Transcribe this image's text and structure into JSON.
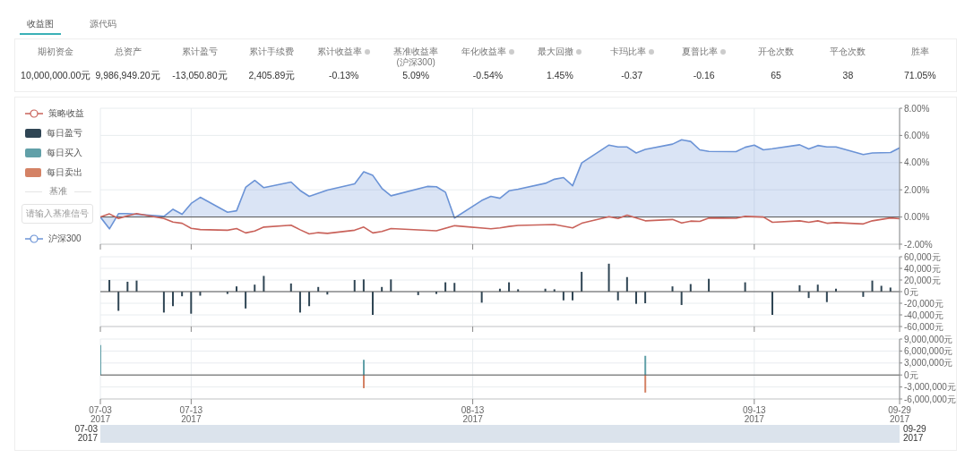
{
  "chart_data": [
    {
      "type": "other",
      "annotations": [
        "收益图",
        "源代码"
      ],
      "categories": [
        "期初资金",
        "总资产",
        "累计盈亏",
        "累计手续费",
        "累计收益率",
        "基准收益率\n(沪深300)",
        "年化收益率",
        "最大回撤",
        "卡玛比率",
        "夏普比率",
        "开仓次数",
        "平仓次数",
        "胜率"
      ],
      "value_labels": [
        "10,000,000.00元",
        "9,986,949.20元",
        "-13,050.80元",
        "2,405.89元",
        "-0.13%",
        "5.09%",
        "-0.54%",
        "1.45%",
        "-0.37",
        "-0.16",
        "65",
        "38",
        "71.05%"
      ]
    },
    {
      "type": "line",
      "legend": "left",
      "legend_title": "基准",
      "annotations": [
        "请输入基准信号"
      ],
      "grid": true,
      "tick_labels": "y",
      "xlim": [
        "2017-07-03",
        "2017-09-29"
      ],
      "xticks": [
        {
          "value": "2017-07-03",
          "label": null
        },
        {
          "value": "2017-07-13",
          "label": null
        },
        {
          "value": "2017-08-13",
          "label": null
        },
        {
          "value": "2017-09-13",
          "label": null
        },
        {
          "value": "2017-09-29",
          "label": null
        }
      ],
      "ylim": [
        -2,
        8
      ],
      "yticks": [
        {
          "value": -2,
          "label": "-2.00%"
        },
        {
          "value": 0,
          "label": "0.00%"
        },
        {
          "value": 2,
          "label": "2.00%"
        },
        {
          "value": 4,
          "label": "4.00%"
        },
        {
          "value": 6,
          "label": "6.00%"
        },
        {
          "value": 8,
          "label": "8.00%"
        }
      ],
      "series": [
        {
          "name": "策略收益",
          "type": "line",
          "color": "#c9625a",
          "x": [
            "2017-07-03",
            "2017-07-04",
            "2017-07-05",
            "2017-07-06",
            "2017-07-07",
            "2017-07-10",
            "2017-07-11",
            "2017-07-12",
            "2017-07-13",
            "2017-07-14",
            "2017-07-17",
            "2017-07-18",
            "2017-07-19",
            "2017-07-20",
            "2017-07-21",
            "2017-07-24",
            "2017-07-25",
            "2017-07-26",
            "2017-07-27",
            "2017-07-28",
            "2017-07-31",
            "2017-08-01",
            "2017-08-02",
            "2017-08-03",
            "2017-08-04",
            "2017-08-09",
            "2017-08-11",
            "2017-08-15",
            "2017-08-16",
            "2017-08-17",
            "2017-08-18",
            "2017-08-22",
            "2017-08-24",
            "2017-08-25",
            "2017-08-28",
            "2017-08-29",
            "2017-08-30",
            "2017-09-01",
            "2017-09-04",
            "2017-09-05",
            "2017-09-06",
            "2017-09-07",
            "2017-09-08",
            "2017-09-11",
            "2017-09-12",
            "2017-09-14",
            "2017-09-15",
            "2017-09-18",
            "2017-09-19",
            "2017-09-20",
            "2017-09-21",
            "2017-09-22",
            "2017-09-25",
            "2017-09-26",
            "2017-09-28",
            "2017-09-29"
          ],
          "values": [
            0,
            0.23,
            -0.11,
            0.09,
            0.25,
            -0.11,
            -0.37,
            -0.46,
            -0.83,
            -0.92,
            -0.97,
            -0.85,
            -1.17,
            -1.03,
            -0.74,
            -0.6,
            -0.94,
            -1.24,
            -1.15,
            -1.2,
            -0.97,
            -0.74,
            -1.17,
            -1.06,
            -0.85,
            -1.01,
            -0.64,
            -0.87,
            -0.8,
            -0.69,
            -0.62,
            -0.55,
            -0.8,
            -0.46,
            0.02,
            -0.11,
            0.14,
            -0.28,
            -0.18,
            -0.44,
            -0.3,
            -0.32,
            -0.07,
            -0.09,
            0.05,
            0,
            -0.39,
            -0.28,
            -0.39,
            -0.28,
            -0.46,
            -0.41,
            -0.51,
            -0.28,
            -0.07,
            -0.13
          ]
        },
        {
          "name": "沪深300",
          "type": "area",
          "color": "#6b93d6",
          "x": [
            "2017-07-03",
            "2017-07-04",
            "2017-07-05",
            "2017-07-06",
            "2017-07-07",
            "2017-07-10",
            "2017-07-11",
            "2017-07-12",
            "2017-07-13",
            "2017-07-14",
            "2017-07-17",
            "2017-07-18",
            "2017-07-19",
            "2017-07-20",
            "2017-07-21",
            "2017-07-24",
            "2017-07-25",
            "2017-07-26",
            "2017-07-28",
            "2017-07-31",
            "2017-08-01",
            "2017-08-02",
            "2017-08-03",
            "2017-08-04",
            "2017-08-08",
            "2017-08-09",
            "2017-08-10",
            "2017-08-11",
            "2017-08-14",
            "2017-08-15",
            "2017-08-16",
            "2017-08-17",
            "2017-08-18",
            "2017-08-21",
            "2017-08-22",
            "2017-08-23",
            "2017-08-24",
            "2017-08-25",
            "2017-08-28",
            "2017-08-29",
            "2017-08-30",
            "2017-08-31",
            "2017-09-01",
            "2017-09-04",
            "2017-09-05",
            "2017-09-06",
            "2017-09-07",
            "2017-09-08",
            "2017-09-11",
            "2017-09-12",
            "2017-09-13",
            "2017-09-14",
            "2017-09-15",
            "2017-09-18",
            "2017-09-19",
            "2017-09-20",
            "2017-09-21",
            "2017-09-22",
            "2017-09-25",
            "2017-09-26",
            "2017-09-28",
            "2017-09-29"
          ],
          "values": [
            0,
            -0.87,
            0.25,
            0.25,
            0.2,
            0.05,
            0.57,
            0.2,
            1.0,
            1.45,
            0.35,
            0.46,
            2.18,
            2.69,
            2.16,
            2.57,
            1.95,
            1.52,
            1.98,
            2.44,
            3.33,
            3.06,
            2.11,
            1.56,
            2.25,
            2.23,
            1.82,
            -0.07,
            1.22,
            1.52,
            1.38,
            1.93,
            2.05,
            2.48,
            2.78,
            2.9,
            2.3,
            3.98,
            5.29,
            5.15,
            5.15,
            4.71,
            4.97,
            5.36,
            5.68,
            5.56,
            4.94,
            4.83,
            4.81,
            5.13,
            5.29,
            4.94,
            5.02,
            5.31,
            5.0,
            5.26,
            5.15,
            5.15,
            4.6,
            4.71,
            4.74,
            5.09
          ]
        }
      ]
    },
    {
      "type": "bar",
      "legend": "left",
      "grid": true,
      "tick_labels": "y",
      "xlim": [
        "2017-07-03",
        "2017-09-29"
      ],
      "xticks": [
        {
          "value": "2017-07-03",
          "label": null
        },
        {
          "value": "2017-07-13",
          "label": null
        },
        {
          "value": "2017-08-13",
          "label": null
        },
        {
          "value": "2017-09-13",
          "label": null
        },
        {
          "value": "2017-09-29",
          "label": null
        }
      ],
      "ylim": [
        -60000,
        60000
      ],
      "yticks": [
        {
          "value": -60000,
          "label": "-60,000元"
        },
        {
          "value": -40000,
          "label": "-40,000元"
        },
        {
          "value": -20000,
          "label": "-20,000元"
        },
        {
          "value": 0,
          "label": "0元"
        },
        {
          "value": 20000,
          "label": "20,000元"
        },
        {
          "value": 40000,
          "label": "40,000元"
        },
        {
          "value": 60000,
          "label": "60,000元"
        }
      ],
      "series": [
        {
          "name": "每日盈亏",
          "color": "#2f4554",
          "x": [
            "2017-07-04",
            "2017-07-05",
            "2017-07-06",
            "2017-07-07",
            "2017-07-10",
            "2017-07-11",
            "2017-07-12",
            "2017-07-13",
            "2017-07-14",
            "2017-07-17",
            "2017-07-18",
            "2017-07-19",
            "2017-07-20",
            "2017-07-21",
            "2017-07-24",
            "2017-07-25",
            "2017-07-26",
            "2017-07-27",
            "2017-07-28",
            "2017-07-31",
            "2017-08-01",
            "2017-08-02",
            "2017-08-03",
            "2017-08-04",
            "2017-08-07",
            "2017-08-08",
            "2017-08-09",
            "2017-08-10",
            "2017-08-11",
            "2017-08-14",
            "2017-08-15",
            "2017-08-16",
            "2017-08-17",
            "2017-08-18",
            "2017-08-21",
            "2017-08-22",
            "2017-08-23",
            "2017-08-24",
            "2017-08-25",
            "2017-08-28",
            "2017-08-29",
            "2017-08-30",
            "2017-08-31",
            "2017-09-01",
            "2017-09-04",
            "2017-09-05",
            "2017-09-06",
            "2017-09-08",
            "2017-09-12",
            "2017-09-13",
            "2017-09-15",
            "2017-09-18",
            "2017-09-19",
            "2017-09-20",
            "2017-09-21",
            "2017-09-22",
            "2017-09-25",
            "2017-09-26",
            "2017-09-27",
            "2017-09-28"
          ],
          "values": [
            20000,
            -33000,
            17000,
            19000,
            -36000,
            -25000,
            -8000,
            -38000,
            -7000,
            -4000,
            9000,
            -29000,
            12000,
            27000,
            14000,
            -36000,
            -25000,
            8000,
            -5000,
            20000,
            21000,
            -40000,
            8000,
            21000,
            -6000,
            null,
            -4000,
            16000,
            15000,
            -19000,
            null,
            5000,
            16000,
            4000,
            5000,
            4000,
            -15000,
            -15000,
            34000,
            48000,
            -15000,
            25000,
            -21000,
            -20000,
            9000,
            -23000,
            13000,
            22000,
            16000,
            null,
            -40000,
            11000,
            -11000,
            12000,
            -18000,
            5000,
            -9000,
            19000,
            10000,
            7000
          ]
        }
      ]
    },
    {
      "type": "bar",
      "legend": "left",
      "grid": true,
      "xlim": [
        "2017-07-03",
        "2017-09-29"
      ],
      "xticks": [
        {
          "value": "2017-07-03",
          "label": "07-03\n2017"
        },
        {
          "value": "2017-07-13",
          "label": "07-13\n2017"
        },
        {
          "value": "2017-08-13",
          "label": "08-13\n2017"
        },
        {
          "value": "2017-09-13",
          "label": "09-13\n2017"
        },
        {
          "value": "2017-09-29",
          "label": "09-29\n2017"
        }
      ],
      "ylim": [
        -6000000,
        9000000
      ],
      "yticks": [
        {
          "value": -6000000,
          "label": "-6,000,000元"
        },
        {
          "value": -3000000,
          "label": "-3,000,000元"
        },
        {
          "value": 0,
          "label": "0元"
        },
        {
          "value": 3000000,
          "label": "3,000,000元"
        },
        {
          "value": 6000000,
          "label": "6,000,000元"
        },
        {
          "value": 9000000,
          "label": "9,000,000元"
        }
      ],
      "series": [
        {
          "name": "每日买入",
          "color": "#61a0a8",
          "x": [
            "2017-07-03",
            "2017-08-01",
            "2017-09-01"
          ],
          "values": [
            7500000,
            3800000,
            4800000
          ]
        },
        {
          "name": "每日卖出",
          "color": "#d48265",
          "x": [
            "2017-08-01",
            "2017-09-01"
          ],
          "values": [
            -3300000,
            -4400000
          ]
        }
      ]
    }
  ]
}
